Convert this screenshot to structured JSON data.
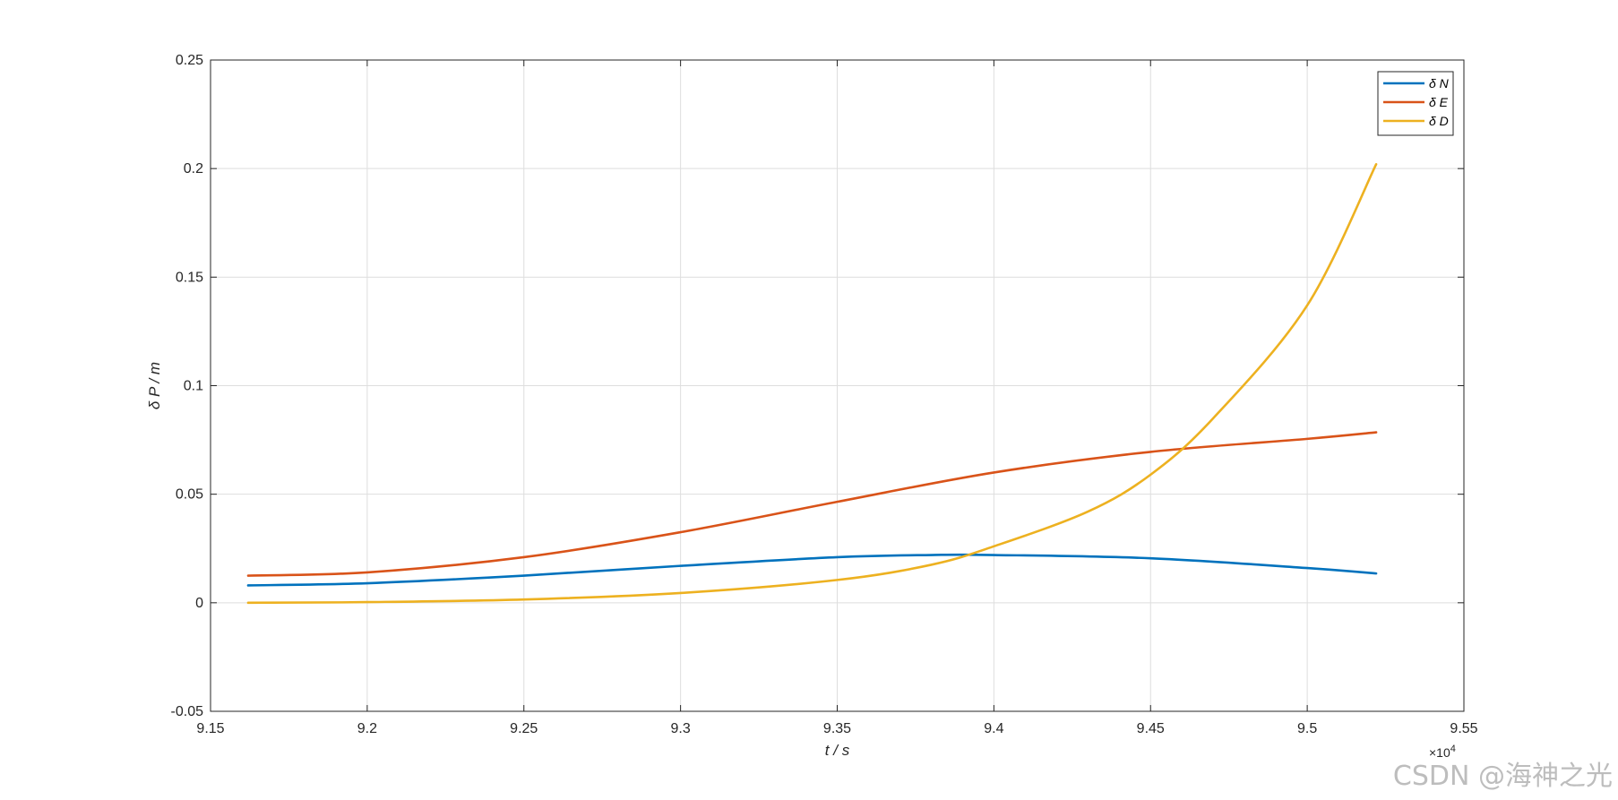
{
  "chart_data": {
    "type": "line",
    "title": "",
    "xlabel": "t  / s",
    "ylabel": "δ P / m",
    "x_exponent": "×10",
    "x_exponent_power": "4",
    "xlim": [
      9.15,
      9.55
    ],
    "ylim": [
      -0.05,
      0.25
    ],
    "xticks": [
      9.15,
      9.2,
      9.25,
      9.3,
      9.35,
      9.4,
      9.45,
      9.5,
      9.55
    ],
    "xtick_labels": [
      "9.15",
      "9.2",
      "9.25",
      "9.3",
      "9.35",
      "9.4",
      "9.45",
      "9.5",
      "9.55"
    ],
    "yticks": [
      -0.05,
      0,
      0.05,
      0.1,
      0.15,
      0.2,
      0.25
    ],
    "ytick_labels": [
      "-0.05",
      "0",
      "0.05",
      "0.1",
      "0.15",
      "0.2",
      "0.25"
    ],
    "grid": true,
    "legend_position": "top-right",
    "series": [
      {
        "name": "δ N",
        "color": "#0072BD",
        "x": [
          9.162,
          9.2,
          9.25,
          9.3,
          9.35,
          9.38,
          9.4,
          9.45,
          9.5,
          9.522
        ],
        "y": [
          0.008,
          0.009,
          0.0125,
          0.017,
          0.021,
          0.022,
          0.022,
          0.0205,
          0.016,
          0.0135
        ]
      },
      {
        "name": "δ E",
        "color": "#D95319",
        "x": [
          9.162,
          9.2,
          9.25,
          9.3,
          9.35,
          9.4,
          9.45,
          9.5,
          9.522
        ],
        "y": [
          0.0125,
          0.014,
          0.021,
          0.0325,
          0.0465,
          0.06,
          0.0695,
          0.0755,
          0.0785
        ]
      },
      {
        "name": "δ D",
        "color": "#EDB120",
        "x": [
          9.162,
          9.2,
          9.25,
          9.3,
          9.35,
          9.38,
          9.4,
          9.43,
          9.45,
          9.47,
          9.5,
          9.522
        ],
        "y": [
          0.0,
          0.0003,
          0.0015,
          0.0045,
          0.0105,
          0.0175,
          0.026,
          0.042,
          0.059,
          0.085,
          0.137,
          0.202
        ]
      }
    ]
  },
  "watermark": "CSDN @海神之光"
}
